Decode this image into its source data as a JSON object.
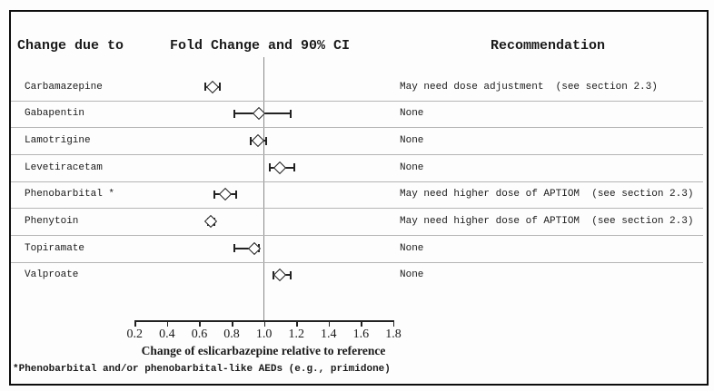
{
  "headers": {
    "change_due_to": "Change due to",
    "fold_change": "Fold Change and 90% CI",
    "recommendation": "Recommendation"
  },
  "chart_data": {
    "type": "forest",
    "title": "Fold Change and 90% CI",
    "xlabel": "Change of eslicarbazepine relative to reference",
    "footnote": "*Phenobarbital and/or phenobarbital-like AEDs (e.g., primidone)",
    "x_ticks": [
      0.2,
      0.4,
      0.6,
      0.8,
      1.0,
      1.2,
      1.4,
      1.6,
      1.8
    ],
    "xlim": [
      0.2,
      1.8
    ],
    "reference_line": 1.0,
    "grid": false,
    "rows": [
      {
        "label": "Carbamazepine",
        "estimate": 0.68,
        "ci_low": 0.63,
        "ci_high": 0.72,
        "recommendation": "May need dose adjustment  (see section 2.3)"
      },
      {
        "label": "Gabapentin",
        "estimate": 0.97,
        "ci_low": 0.81,
        "ci_high": 1.16,
        "recommendation": "None"
      },
      {
        "label": "Lamotrigine",
        "estimate": 0.96,
        "ci_low": 0.91,
        "ci_high": 1.01,
        "recommendation": "None"
      },
      {
        "label": "Levetiracetam",
        "estimate": 1.1,
        "ci_low": 1.03,
        "ci_high": 1.18,
        "recommendation": "None"
      },
      {
        "label": "Phenobarbital *",
        "estimate": 0.76,
        "ci_low": 0.69,
        "ci_high": 0.82,
        "recommendation": "May need higher dose of APTIOM  (see section 2.3)"
      },
      {
        "label": "Phenytoin",
        "estimate": 0.67,
        "ci_low": 0.65,
        "ci_high": 0.69,
        "recommendation": "May need higher dose of APTIOM  (see section 2.3)"
      },
      {
        "label": "Topiramate",
        "estimate": 0.94,
        "ci_low": 0.81,
        "ci_high": 0.96,
        "recommendation": "None"
      },
      {
        "label": "Valproate",
        "estimate": 1.1,
        "ci_low": 1.05,
        "ci_high": 1.16,
        "recommendation": "None"
      }
    ]
  },
  "colors": {
    "ink": "#1a1a1a",
    "marker": "#222222",
    "reference_line": "#8a8a8a",
    "row_separator": "#b5b5b5",
    "frame_border": "#0d0d0d",
    "background": "#fdfdfd"
  }
}
